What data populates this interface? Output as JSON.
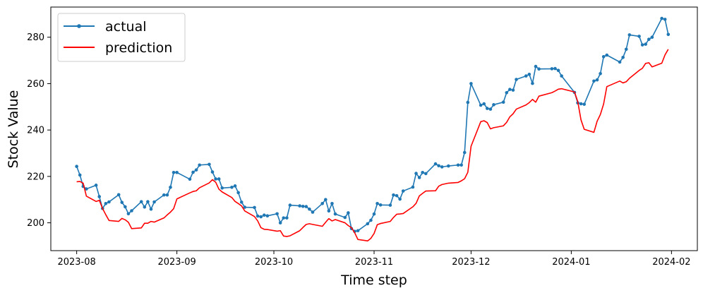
{
  "chart_data": {
    "type": "line",
    "title": "",
    "xlabel": "Time step",
    "ylabel": "Stock Value",
    "x_ticks": [
      "2023-08",
      "2023-09",
      "2023-10",
      "2023-11",
      "2023-12",
      "2024-01",
      "2024-02"
    ],
    "y_ticks": [
      200,
      220,
      240,
      260,
      280
    ],
    "xlim": [
      "2023-07-24",
      "2024-02-09"
    ],
    "ylim": [
      188,
      293
    ],
    "grid": false,
    "legend": "top-left",
    "series": [
      {
        "name": "actual",
        "color": "#1f77b4",
        "marker": "circle",
        "points": [
          [
            "2023-08-01",
            224.3
          ],
          [
            "2023-08-02",
            220.6
          ],
          [
            "2023-08-03",
            215.7
          ],
          [
            "2023-08-04",
            214.6
          ],
          [
            "2023-08-07",
            216.2
          ],
          [
            "2023-08-08",
            211.3
          ],
          [
            "2023-08-09",
            206.2
          ],
          [
            "2023-08-10",
            208.3
          ],
          [
            "2023-08-11",
            209.0
          ],
          [
            "2023-08-14",
            212.1
          ],
          [
            "2023-08-15",
            208.8
          ],
          [
            "2023-08-16",
            206.9
          ],
          [
            "2023-08-17",
            203.9
          ],
          [
            "2023-08-18",
            205.2
          ],
          [
            "2023-08-21",
            209.1
          ],
          [
            "2023-08-22",
            206.8
          ],
          [
            "2023-08-23",
            209.1
          ],
          [
            "2023-08-24",
            205.9
          ],
          [
            "2023-08-25",
            209.0
          ],
          [
            "2023-08-28",
            212.0
          ],
          [
            "2023-08-29",
            212.0
          ],
          [
            "2023-08-30",
            215.3
          ],
          [
            "2023-08-31",
            221.7
          ],
          [
            "2023-09-01",
            221.7
          ],
          [
            "2023-09-05",
            218.8
          ],
          [
            "2023-09-06",
            221.8
          ],
          [
            "2023-09-07",
            222.8
          ],
          [
            "2023-09-08",
            224.9
          ],
          [
            "2023-09-11",
            225.2
          ],
          [
            "2023-09-12",
            221.9
          ],
          [
            "2023-09-13",
            218.9
          ],
          [
            "2023-09-14",
            218.9
          ],
          [
            "2023-09-15",
            215.0
          ],
          [
            "2023-09-18",
            215.3
          ],
          [
            "2023-09-19",
            215.9
          ],
          [
            "2023-09-20",
            213.0
          ],
          [
            "2023-09-21",
            208.9
          ],
          [
            "2023-09-22",
            206.7
          ],
          [
            "2023-09-25",
            206.6
          ],
          [
            "2023-09-26",
            202.9
          ],
          [
            "2023-09-27",
            202.6
          ],
          [
            "2023-09-28",
            203.3
          ],
          [
            "2023-09-29",
            203.0
          ],
          [
            "2023-10-02",
            203.9
          ],
          [
            "2023-10-03",
            200.0
          ],
          [
            "2023-10-04",
            202.1
          ],
          [
            "2023-10-05",
            202.1
          ],
          [
            "2023-10-06",
            207.6
          ],
          [
            "2023-10-09",
            207.3
          ],
          [
            "2023-10-10",
            207.1
          ],
          [
            "2023-10-11",
            207.0
          ],
          [
            "2023-10-12",
            205.9
          ],
          [
            "2023-10-13",
            204.6
          ],
          [
            "2023-10-16",
            208.3
          ],
          [
            "2023-10-17",
            210.0
          ],
          [
            "2023-10-18",
            205.1
          ],
          [
            "2023-10-19",
            208.3
          ],
          [
            "2023-10-20",
            203.8
          ],
          [
            "2023-10-23",
            202.3
          ],
          [
            "2023-10-24",
            204.3
          ],
          [
            "2023-10-25",
            197.5
          ],
          [
            "2023-10-26",
            196.3
          ],
          [
            "2023-10-27",
            196.6
          ],
          [
            "2023-10-30",
            199.6
          ],
          [
            "2023-10-31",
            201.1
          ],
          [
            "2023-11-01",
            203.8
          ],
          [
            "2023-11-02",
            208.3
          ],
          [
            "2023-11-03",
            207.7
          ],
          [
            "2023-11-06",
            207.6
          ],
          [
            "2023-11-07",
            212.0
          ],
          [
            "2023-11-08",
            211.7
          ],
          [
            "2023-11-09",
            210.2
          ],
          [
            "2023-11-10",
            213.7
          ],
          [
            "2023-11-13",
            215.4
          ],
          [
            "2023-11-14",
            221.3
          ],
          [
            "2023-11-15",
            219.5
          ],
          [
            "2023-11-16",
            221.7
          ],
          [
            "2023-11-17",
            221.2
          ],
          [
            "2023-11-20",
            225.4
          ],
          [
            "2023-11-21",
            224.6
          ],
          [
            "2023-11-22",
            224.1
          ],
          [
            "2023-11-24",
            224.5
          ],
          [
            "2023-11-27",
            224.9
          ],
          [
            "2023-11-28",
            224.9
          ],
          [
            "2023-11-29",
            230.3
          ],
          [
            "2023-11-30",
            251.9
          ],
          [
            "2023-12-01",
            260.0
          ],
          [
            "2023-12-04",
            250.7
          ],
          [
            "2023-12-05",
            251.3
          ],
          [
            "2023-12-06",
            249.3
          ],
          [
            "2023-12-07",
            249.0
          ],
          [
            "2023-12-08",
            250.9
          ],
          [
            "2023-12-11",
            252.0
          ],
          [
            "2023-12-12",
            256.1
          ],
          [
            "2023-12-13",
            257.5
          ],
          [
            "2023-12-14",
            257.2
          ],
          [
            "2023-12-15",
            261.8
          ],
          [
            "2023-12-18",
            263.3
          ],
          [
            "2023-12-19",
            264.0
          ],
          [
            "2023-12-20",
            260.1
          ],
          [
            "2023-12-21",
            267.4
          ],
          [
            "2023-12-22",
            266.3
          ],
          [
            "2023-12-26",
            266.4
          ],
          [
            "2023-12-27",
            266.5
          ],
          [
            "2023-12-28",
            265.7
          ],
          [
            "2023-12-29",
            263.3
          ],
          [
            "2024-01-02",
            256.2
          ],
          [
            "2024-01-03",
            251.7
          ],
          [
            "2024-01-04",
            251.3
          ],
          [
            "2024-01-05",
            251.1
          ],
          [
            "2024-01-08",
            261.1
          ],
          [
            "2024-01-09",
            261.6
          ],
          [
            "2024-01-10",
            264.3
          ],
          [
            "2024-01-11",
            271.6
          ],
          [
            "2024-01-12",
            272.3
          ],
          [
            "2024-01-16",
            269.3
          ],
          [
            "2024-01-17",
            271.3
          ],
          [
            "2024-01-18",
            274.8
          ],
          [
            "2024-01-19",
            281.0
          ],
          [
            "2024-01-22",
            280.4
          ],
          [
            "2024-01-23",
            276.7
          ],
          [
            "2024-01-24",
            277.0
          ],
          [
            "2024-01-25",
            279.1
          ],
          [
            "2024-01-26",
            280.0
          ],
          [
            "2024-01-29",
            288.1
          ],
          [
            "2024-01-30",
            287.7
          ],
          [
            "2024-01-31",
            281.2
          ]
        ]
      },
      {
        "name": "prediction",
        "color": "#ff0000",
        "marker": "none",
        "points": [
          [
            "2023-08-01",
            217.7
          ],
          [
            "2023-08-02",
            217.8
          ],
          [
            "2023-08-03",
            217.1
          ],
          [
            "2023-08-04",
            211.5
          ],
          [
            "2023-08-07",
            209.2
          ],
          [
            "2023-08-08",
            209.7
          ],
          [
            "2023-08-09",
            206.2
          ],
          [
            "2023-08-10",
            203.5
          ],
          [
            "2023-08-11",
            201.0
          ],
          [
            "2023-08-14",
            200.6
          ],
          [
            "2023-08-15",
            201.9
          ],
          [
            "2023-08-16",
            201.3
          ],
          [
            "2023-08-17",
            200.2
          ],
          [
            "2023-08-18",
            197.5
          ],
          [
            "2023-08-21",
            197.8
          ],
          [
            "2023-08-22",
            199.8
          ],
          [
            "2023-08-23",
            199.8
          ],
          [
            "2023-08-24",
            200.6
          ],
          [
            "2023-08-25",
            200.3
          ],
          [
            "2023-08-28",
            202.1
          ],
          [
            "2023-08-29",
            203.4
          ],
          [
            "2023-08-30",
            204.6
          ],
          [
            "2023-08-31",
            206.1
          ],
          [
            "2023-09-01",
            210.3
          ],
          [
            "2023-09-05",
            212.9
          ],
          [
            "2023-09-06",
            213.5
          ],
          [
            "2023-09-07",
            213.8
          ],
          [
            "2023-09-08",
            215.1
          ],
          [
            "2023-09-11",
            217.2
          ],
          [
            "2023-09-12",
            218.6
          ],
          [
            "2023-09-13",
            217.5
          ],
          [
            "2023-09-14",
            214.5
          ],
          [
            "2023-09-15",
            213.3
          ],
          [
            "2023-09-18",
            210.9
          ],
          [
            "2023-09-19",
            209.2
          ],
          [
            "2023-09-20",
            208.3
          ],
          [
            "2023-09-21",
            207.3
          ],
          [
            "2023-09-22",
            205.1
          ],
          [
            "2023-09-25",
            202.7
          ],
          [
            "2023-09-26",
            200.8
          ],
          [
            "2023-09-27",
            197.9
          ],
          [
            "2023-09-28",
            197.2
          ],
          [
            "2023-09-29",
            197.1
          ],
          [
            "2023-10-02",
            196.4
          ],
          [
            "2023-10-03",
            196.6
          ],
          [
            "2023-10-04",
            194.3
          ],
          [
            "2023-10-05",
            194.1
          ],
          [
            "2023-10-06",
            194.4
          ],
          [
            "2023-10-09",
            196.6
          ],
          [
            "2023-10-10",
            198.0
          ],
          [
            "2023-10-11",
            199.3
          ],
          [
            "2023-10-12",
            199.6
          ],
          [
            "2023-10-13",
            199.3
          ],
          [
            "2023-10-16",
            198.5
          ],
          [
            "2023-10-17",
            200.2
          ],
          [
            "2023-10-18",
            201.8
          ],
          [
            "2023-10-19",
            200.8
          ],
          [
            "2023-10-20",
            201.4
          ],
          [
            "2023-10-23",
            200.0
          ],
          [
            "2023-10-24",
            198.8
          ],
          [
            "2023-10-25",
            197.9
          ],
          [
            "2023-10-26",
            195.7
          ],
          [
            "2023-10-27",
            192.8
          ],
          [
            "2023-10-30",
            192.2
          ],
          [
            "2023-10-31",
            193.3
          ],
          [
            "2023-11-01",
            195.4
          ],
          [
            "2023-11-02",
            199.2
          ],
          [
            "2023-11-03",
            199.7
          ],
          [
            "2023-11-06",
            200.6
          ],
          [
            "2023-11-07",
            202.3
          ],
          [
            "2023-11-08",
            203.7
          ],
          [
            "2023-11-09",
            203.8
          ],
          [
            "2023-11-10",
            204.0
          ],
          [
            "2023-11-13",
            206.9
          ],
          [
            "2023-11-14",
            208.4
          ],
          [
            "2023-11-15",
            211.6
          ],
          [
            "2023-11-16",
            212.7
          ],
          [
            "2023-11-17",
            213.7
          ],
          [
            "2023-11-20",
            213.8
          ],
          [
            "2023-11-21",
            215.8
          ],
          [
            "2023-11-22",
            216.5
          ],
          [
            "2023-11-24",
            217.1
          ],
          [
            "2023-11-27",
            217.4
          ],
          [
            "2023-11-28",
            218.1
          ],
          [
            "2023-11-29",
            219.0
          ],
          [
            "2023-11-30",
            221.8
          ],
          [
            "2023-12-01",
            233.0
          ],
          [
            "2023-12-04",
            243.6
          ],
          [
            "2023-12-05",
            244.0
          ],
          [
            "2023-12-06",
            243.2
          ],
          [
            "2023-12-07",
            240.5
          ],
          [
            "2023-12-08",
            241.0
          ],
          [
            "2023-12-11",
            241.8
          ],
          [
            "2023-12-12",
            243.3
          ],
          [
            "2023-12-13",
            245.7
          ],
          [
            "2023-12-14",
            247.0
          ],
          [
            "2023-12-15",
            249.0
          ],
          [
            "2023-12-18",
            250.8
          ],
          [
            "2023-12-19",
            251.8
          ],
          [
            "2023-12-20",
            253.2
          ],
          [
            "2023-12-21",
            252.0
          ],
          [
            "2023-12-22",
            254.6
          ],
          [
            "2023-12-26",
            256.1
          ],
          [
            "2023-12-27",
            256.8
          ],
          [
            "2023-12-28",
            257.6
          ],
          [
            "2023-12-29",
            257.8
          ],
          [
            "2024-01-02",
            256.4
          ],
          [
            "2024-01-03",
            252.3
          ],
          [
            "2024-01-04",
            244.4
          ],
          [
            "2024-01-05",
            240.3
          ],
          [
            "2024-01-08",
            239.0
          ],
          [
            "2024-01-09",
            243.8
          ],
          [
            "2024-01-10",
            246.7
          ],
          [
            "2024-01-11",
            251.2
          ],
          [
            "2024-01-12",
            258.7
          ],
          [
            "2024-01-16",
            261.1
          ],
          [
            "2024-01-17",
            260.3
          ],
          [
            "2024-01-18",
            260.8
          ],
          [
            "2024-01-19",
            262.3
          ],
          [
            "2024-01-22",
            265.7
          ],
          [
            "2024-01-23",
            266.6
          ],
          [
            "2024-01-24",
            268.7
          ],
          [
            "2024-01-25",
            269.0
          ],
          [
            "2024-01-26",
            267.2
          ],
          [
            "2024-01-29",
            268.8
          ],
          [
            "2024-01-30",
            272.4
          ],
          [
            "2024-01-31",
            274.8
          ]
        ]
      }
    ]
  }
}
